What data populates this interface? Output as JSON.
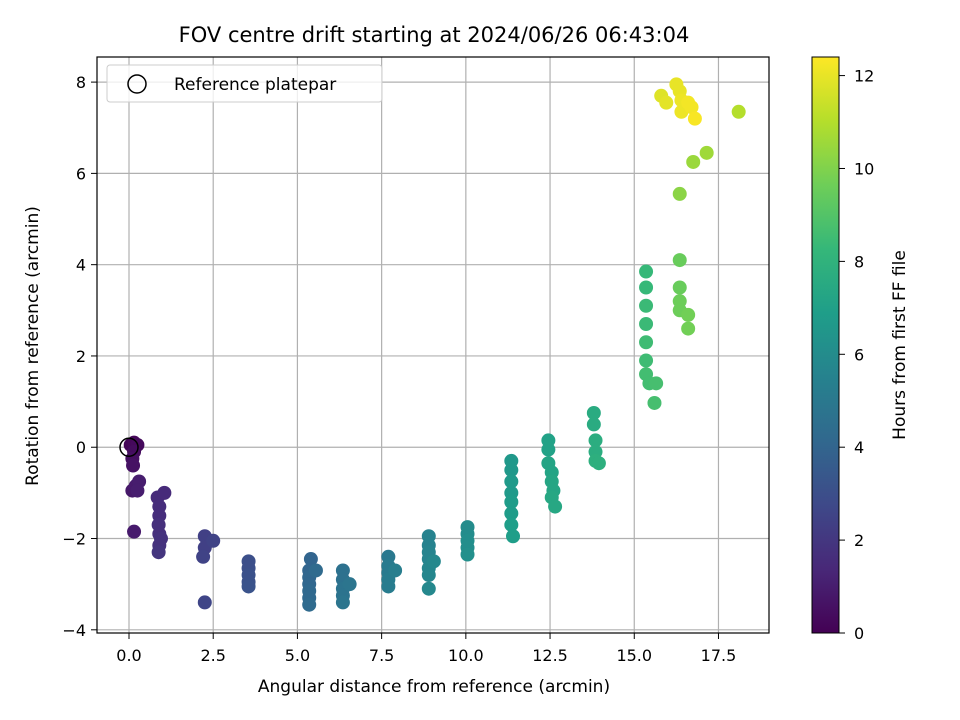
{
  "chart_data": {
    "type": "scatter",
    "title": "FOV centre drift starting at 2024/06/26 06:43:04",
    "xlabel": "Angular distance from reference (arcmin)",
    "ylabel": "Rotation from reference (arcmin)",
    "xlim": [
      -0.95,
      19.0
    ],
    "ylim": [
      -4.07,
      8.55
    ],
    "xticks": [
      "0.0",
      "2.5",
      "5.0",
      "7.5",
      "10.0",
      "12.5",
      "15.0",
      "17.5"
    ],
    "xtick_values": [
      0,
      2.5,
      5,
      7.5,
      10,
      12.5,
      15,
      17.5
    ],
    "yticks": [
      "−4",
      "−2",
      "0",
      "2",
      "4",
      "6",
      "8"
    ],
    "ytick_values": [
      -4,
      -2,
      0,
      2,
      4,
      6,
      8
    ],
    "grid": true,
    "legend": {
      "placement": "top-left",
      "entries": [
        "Reference platepar"
      ]
    },
    "reference_point": {
      "x": 0,
      "y": 0
    },
    "colorbar": {
      "label": "Hours from first FF file",
      "range": [
        0,
        12.4
      ],
      "ticks": [
        "0",
        "2",
        "4",
        "6",
        "8",
        "10",
        "12"
      ],
      "tick_values": [
        0,
        2,
        4,
        6,
        8,
        10,
        12
      ],
      "colormap": "viridis",
      "colors": [
        "#440154",
        "#482878",
        "#3e4989",
        "#31688e",
        "#26828e",
        "#1f9e89",
        "#35b779",
        "#6ece58",
        "#b5de2b",
        "#fde725"
      ]
    },
    "points": [
      {
        "x": 0.05,
        "y": 0.05,
        "t": 0.1
      },
      {
        "x": 0.15,
        "y": 0.1,
        "t": 0.2
      },
      {
        "x": 0.25,
        "y": 0.05,
        "t": 0.3
      },
      {
        "x": 0.15,
        "y": -0.1,
        "t": 0.4
      },
      {
        "x": 0.1,
        "y": -0.25,
        "t": 0.5
      },
      {
        "x": 0.12,
        "y": -0.4,
        "t": 0.6
      },
      {
        "x": 0.1,
        "y": -0.95,
        "t": 0.8
      },
      {
        "x": 0.2,
        "y": -0.85,
        "t": 0.9
      },
      {
        "x": 0.3,
        "y": -0.75,
        "t": 1.0
      },
      {
        "x": 0.15,
        "y": -1.85,
        "t": 0.9
      },
      {
        "x": 0.25,
        "y": -0.95,
        "t": 1.0
      },
      {
        "x": 0.85,
        "y": -1.1,
        "t": 1.5
      },
      {
        "x": 1.05,
        "y": -1.0,
        "t": 1.5
      },
      {
        "x": 0.9,
        "y": -1.3,
        "t": 1.6
      },
      {
        "x": 0.9,
        "y": -1.5,
        "t": 1.6
      },
      {
        "x": 0.88,
        "y": -1.7,
        "t": 1.7
      },
      {
        "x": 0.9,
        "y": -1.9,
        "t": 1.7
      },
      {
        "x": 0.95,
        "y": -2.0,
        "t": 1.8
      },
      {
        "x": 0.9,
        "y": -2.15,
        "t": 1.8
      },
      {
        "x": 0.88,
        "y": -2.3,
        "t": 1.9
      },
      {
        "x": 2.25,
        "y": -1.95,
        "t": 2.4
      },
      {
        "x": 2.25,
        "y": -2.2,
        "t": 2.4
      },
      {
        "x": 2.2,
        "y": -2.4,
        "t": 2.5
      },
      {
        "x": 2.5,
        "y": -2.05,
        "t": 2.5
      },
      {
        "x": 2.25,
        "y": -3.4,
        "t": 2.6
      },
      {
        "x": 3.55,
        "y": -2.5,
        "t": 3.0
      },
      {
        "x": 3.55,
        "y": -2.65,
        "t": 3.0
      },
      {
        "x": 3.55,
        "y": -2.8,
        "t": 3.1
      },
      {
        "x": 3.55,
        "y": -2.95,
        "t": 3.1
      },
      {
        "x": 3.55,
        "y": -3.05,
        "t": 3.2
      },
      {
        "x": 5.4,
        "y": -2.45,
        "t": 4.0
      },
      {
        "x": 5.35,
        "y": -2.7,
        "t": 4.0
      },
      {
        "x": 5.35,
        "y": -2.85,
        "t": 4.1
      },
      {
        "x": 5.35,
        "y": -3.0,
        "t": 4.1
      },
      {
        "x": 5.35,
        "y": -3.15,
        "t": 4.2
      },
      {
        "x": 5.35,
        "y": -3.3,
        "t": 4.2
      },
      {
        "x": 5.35,
        "y": -3.45,
        "t": 4.3
      },
      {
        "x": 5.55,
        "y": -2.7,
        "t": 4.3
      },
      {
        "x": 6.35,
        "y": -2.7,
        "t": 4.6
      },
      {
        "x": 6.35,
        "y": -2.9,
        "t": 4.6
      },
      {
        "x": 6.35,
        "y": -3.1,
        "t": 4.7
      },
      {
        "x": 6.35,
        "y": -3.25,
        "t": 4.7
      },
      {
        "x": 6.35,
        "y": -3.4,
        "t": 4.8
      },
      {
        "x": 6.55,
        "y": -3.0,
        "t": 4.8
      },
      {
        "x": 7.7,
        "y": -2.4,
        "t": 5.0
      },
      {
        "x": 7.7,
        "y": -2.6,
        "t": 5.1
      },
      {
        "x": 7.7,
        "y": -2.75,
        "t": 5.1
      },
      {
        "x": 7.7,
        "y": -2.9,
        "t": 5.2
      },
      {
        "x": 7.7,
        "y": -3.05,
        "t": 5.2
      },
      {
        "x": 7.9,
        "y": -2.7,
        "t": 5.3
      },
      {
        "x": 8.9,
        "y": -1.95,
        "t": 5.5
      },
      {
        "x": 8.9,
        "y": -2.15,
        "t": 5.5
      },
      {
        "x": 8.9,
        "y": -2.3,
        "t": 5.6
      },
      {
        "x": 8.9,
        "y": -2.45,
        "t": 5.6
      },
      {
        "x": 8.9,
        "y": -2.65,
        "t": 5.7
      },
      {
        "x": 8.9,
        "y": -2.8,
        "t": 5.7
      },
      {
        "x": 9.05,
        "y": -2.5,
        "t": 5.8
      },
      {
        "x": 8.9,
        "y": -3.1,
        "t": 5.8
      },
      {
        "x": 10.05,
        "y": -1.75,
        "t": 6.0
      },
      {
        "x": 10.05,
        "y": -1.9,
        "t": 6.0
      },
      {
        "x": 10.05,
        "y": -2.05,
        "t": 6.1
      },
      {
        "x": 10.05,
        "y": -2.2,
        "t": 6.1
      },
      {
        "x": 10.05,
        "y": -2.35,
        "t": 6.2
      },
      {
        "x": 11.35,
        "y": -0.3,
        "t": 6.6
      },
      {
        "x": 11.35,
        "y": -0.5,
        "t": 6.6
      },
      {
        "x": 11.35,
        "y": -0.75,
        "t": 6.7
      },
      {
        "x": 11.35,
        "y": -1.0,
        "t": 6.7
      },
      {
        "x": 11.35,
        "y": -1.2,
        "t": 6.8
      },
      {
        "x": 11.35,
        "y": -1.45,
        "t": 6.8
      },
      {
        "x": 11.35,
        "y": -1.7,
        "t": 6.9
      },
      {
        "x": 11.4,
        "y": -1.95,
        "t": 6.9
      },
      {
        "x": 12.45,
        "y": 0.15,
        "t": 7.1
      },
      {
        "x": 12.45,
        "y": -0.05,
        "t": 7.1
      },
      {
        "x": 12.45,
        "y": -0.35,
        "t": 7.2
      },
      {
        "x": 12.55,
        "y": -0.55,
        "t": 7.2
      },
      {
        "x": 12.55,
        "y": -0.75,
        "t": 7.3
      },
      {
        "x": 12.6,
        "y": -0.95,
        "t": 7.3
      },
      {
        "x": 12.55,
        "y": -1.1,
        "t": 7.4
      },
      {
        "x": 12.65,
        "y": -1.3,
        "t": 7.4
      },
      {
        "x": 13.8,
        "y": 0.75,
        "t": 7.6
      },
      {
        "x": 13.8,
        "y": 0.5,
        "t": 7.6
      },
      {
        "x": 13.85,
        "y": 0.15,
        "t": 7.7
      },
      {
        "x": 13.85,
        "y": -0.1,
        "t": 7.7
      },
      {
        "x": 13.85,
        "y": -0.3,
        "t": 7.8
      },
      {
        "x": 13.95,
        "y": -0.35,
        "t": 7.8
      },
      {
        "x": 15.35,
        "y": 3.85,
        "t": 8.3
      },
      {
        "x": 15.35,
        "y": 3.5,
        "t": 8.3
      },
      {
        "x": 15.35,
        "y": 3.1,
        "t": 8.4
      },
      {
        "x": 15.35,
        "y": 2.7,
        "t": 8.4
      },
      {
        "x": 15.35,
        "y": 2.3,
        "t": 8.5
      },
      {
        "x": 15.35,
        "y": 1.9,
        "t": 8.5
      },
      {
        "x": 15.35,
        "y": 1.6,
        "t": 8.6
      },
      {
        "x": 15.45,
        "y": 1.4,
        "t": 8.6
      },
      {
        "x": 15.65,
        "y": 1.4,
        "t": 8.7
      },
      {
        "x": 15.6,
        "y": 0.97,
        "t": 8.7
      },
      {
        "x": 16.35,
        "y": 4.1,
        "t": 9.5
      },
      {
        "x": 16.35,
        "y": 3.5,
        "t": 9.5
      },
      {
        "x": 16.35,
        "y": 3.2,
        "t": 9.6
      },
      {
        "x": 16.35,
        "y": 3.0,
        "t": 9.6
      },
      {
        "x": 16.6,
        "y": 2.9,
        "t": 9.7
      },
      {
        "x": 16.6,
        "y": 2.6,
        "t": 9.7
      },
      {
        "x": 16.35,
        "y": 5.55,
        "t": 10.2
      },
      {
        "x": 16.75,
        "y": 6.25,
        "t": 10.5
      },
      {
        "x": 17.15,
        "y": 6.45,
        "t": 10.6
      },
      {
        "x": 18.1,
        "y": 7.35,
        "t": 11.0
      },
      {
        "x": 15.8,
        "y": 7.7,
        "t": 11.8
      },
      {
        "x": 15.95,
        "y": 7.55,
        "t": 11.9
      },
      {
        "x": 16.25,
        "y": 7.95,
        "t": 12.0
      },
      {
        "x": 16.35,
        "y": 7.8,
        "t": 12.0
      },
      {
        "x": 16.4,
        "y": 7.6,
        "t": 12.1
      },
      {
        "x": 16.4,
        "y": 7.35,
        "t": 12.1
      },
      {
        "x": 16.6,
        "y": 7.55,
        "t": 12.2
      },
      {
        "x": 16.7,
        "y": 7.45,
        "t": 12.2
      },
      {
        "x": 16.8,
        "y": 7.2,
        "t": 12.3
      }
    ]
  }
}
